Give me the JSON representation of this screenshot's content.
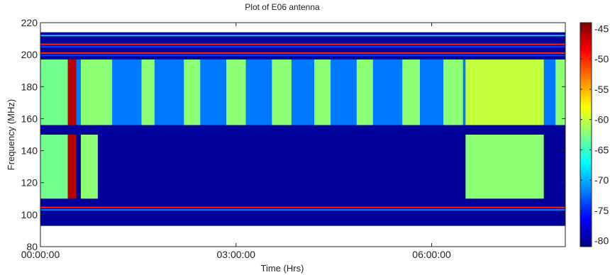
{
  "chart_data": {
    "type": "heatmap",
    "title": "Plot of E06 antenna",
    "xlabel": "Time (Hrs)",
    "ylabel": "Frequency (MHz)",
    "x_ticks": [
      "00:00:00",
      "03:00:00",
      "06:00:00"
    ],
    "x_tick_values_hours": [
      0,
      3,
      6
    ],
    "xlim_hours": [
      0,
      8.05
    ],
    "ylim": [
      80,
      220
    ],
    "y_ticks": [
      80,
      100,
      120,
      140,
      160,
      180,
      200,
      220
    ],
    "colorbar": {
      "colormap": "jet",
      "range": [
        -81,
        -44
      ],
      "ticks": [
        -45,
        -50,
        -55,
        -60,
        -65,
        -70,
        -75,
        -80
      ]
    },
    "data_extent": {
      "time_hours": [
        0,
        8.05
      ],
      "freq_mhz": [
        93,
        214
      ]
    },
    "background_level": -80,
    "horizontal_lines": [
      {
        "freq_mhz": 212,
        "level": -70
      },
      {
        "freq_mhz": 206.5,
        "level": -50
      },
      {
        "freq_mhz": 205,
        "level": -74
      },
      {
        "freq_mhz": 201,
        "level": -50
      },
      {
        "freq_mhz": 199.5,
        "level": -74
      },
      {
        "freq_mhz": 104.5,
        "level": -50
      },
      {
        "freq_mhz": 103,
        "level": -72
      }
    ],
    "blocks": [
      {
        "t": [
          0.0,
          0.42
        ],
        "f": [
          156,
          197
        ],
        "level": -63
      },
      {
        "t": [
          0.0,
          0.42
        ],
        "f": [
          110,
          150
        ],
        "level": -63
      },
      {
        "t": [
          0.42,
          0.55
        ],
        "f": [
          156,
          197
        ],
        "level": -46
      },
      {
        "t": [
          0.42,
          0.55
        ],
        "f": [
          110,
          150
        ],
        "level": -46
      },
      {
        "t": [
          0.62,
          1.1
        ],
        "f": [
          156,
          197
        ],
        "level": -62
      },
      {
        "t": [
          0.62,
          0.88
        ],
        "f": [
          110,
          150
        ],
        "level": -62
      },
      {
        "t": [
          1.55,
          1.75
        ],
        "f": [
          156,
          197
        ],
        "level": -62
      },
      {
        "t": [
          2.2,
          2.45
        ],
        "f": [
          156,
          197
        ],
        "level": -62
      },
      {
        "t": [
          2.85,
          3.15
        ],
        "f": [
          156,
          197
        ],
        "level": -62
      },
      {
        "t": [
          3.55,
          3.85
        ],
        "f": [
          156,
          197
        ],
        "level": -62
      },
      {
        "t": [
          4.2,
          4.45
        ],
        "f": [
          156,
          197
        ],
        "level": -62
      },
      {
        "t": [
          4.85,
          5.1
        ],
        "f": [
          156,
          197
        ],
        "level": -62
      },
      {
        "t": [
          5.55,
          5.82
        ],
        "f": [
          156,
          197
        ],
        "level": -62
      },
      {
        "t": [
          6.18,
          6.48
        ],
        "f": [
          156,
          197
        ],
        "level": -62
      },
      {
        "t": [
          6.52,
          7.72
        ],
        "f": [
          156,
          197
        ],
        "level": -60
      },
      {
        "t": [
          6.52,
          7.72
        ],
        "f": [
          110,
          150
        ],
        "level": -62
      },
      {
        "t": [
          7.9,
          8.05
        ],
        "f": [
          156,
          197
        ],
        "level": -62
      }
    ],
    "faint_bands": [
      {
        "t": [
          0.0,
          8.05
        ],
        "f": [
          156,
          197
        ],
        "level": -72
      }
    ]
  }
}
